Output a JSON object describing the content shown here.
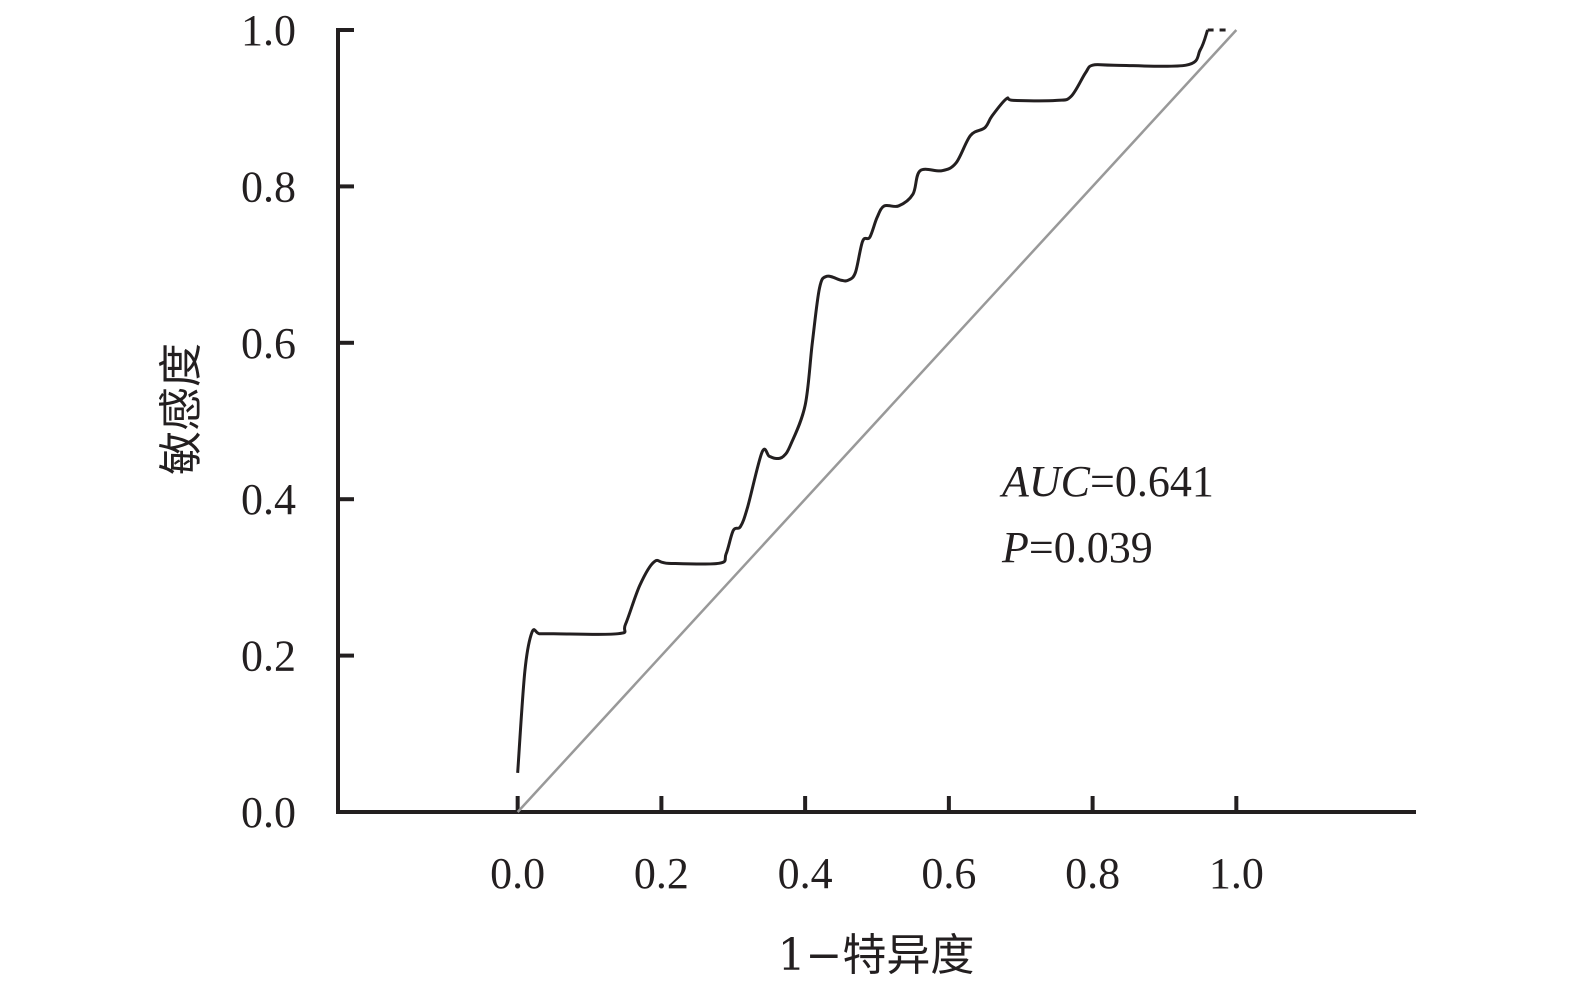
{
  "chart_data": {
    "type": "line",
    "xlabel": "1−特异度",
    "ylabel": "敏感度",
    "xlim": [
      -0.25,
      1.25
    ],
    "ylim": [
      0,
      1
    ],
    "x_ticks": [
      "0.0",
      "0.2",
      "0.4",
      "0.6",
      "0.8",
      "1.0"
    ],
    "y_ticks": [
      "0.0",
      "0.2",
      "0.4",
      "0.6",
      "0.8",
      "1.0"
    ],
    "grid": false,
    "annotation": {
      "auc_name": "AUC",
      "auc_value": "=0.641",
      "p_name": "P",
      "p_value": "=0.039"
    },
    "series": [
      {
        "role": "roc-curve",
        "color": "#231f20",
        "points": [
          [
            0.0,
            0.05
          ],
          [
            0.01,
            0.18
          ],
          [
            0.02,
            0.23
          ],
          [
            0.03,
            0.228
          ],
          [
            0.05,
            0.228
          ],
          [
            0.14,
            0.228
          ],
          [
            0.15,
            0.24
          ],
          [
            0.17,
            0.29
          ],
          [
            0.19,
            0.32
          ],
          [
            0.21,
            0.318
          ],
          [
            0.28,
            0.318
          ],
          [
            0.29,
            0.33
          ],
          [
            0.3,
            0.36
          ],
          [
            0.31,
            0.365
          ],
          [
            0.32,
            0.39
          ],
          [
            0.34,
            0.46
          ],
          [
            0.35,
            0.455
          ],
          [
            0.36,
            0.452
          ],
          [
            0.37,
            0.455
          ],
          [
            0.38,
            0.47
          ],
          [
            0.4,
            0.52
          ],
          [
            0.41,
            0.6
          ],
          [
            0.42,
            0.67
          ],
          [
            0.43,
            0.685
          ],
          [
            0.45,
            0.68
          ],
          [
            0.46,
            0.68
          ],
          [
            0.47,
            0.69
          ],
          [
            0.48,
            0.73
          ],
          [
            0.49,
            0.735
          ],
          [
            0.5,
            0.76
          ],
          [
            0.51,
            0.775
          ],
          [
            0.53,
            0.775
          ],
          [
            0.55,
            0.79
          ],
          [
            0.56,
            0.82
          ],
          [
            0.59,
            0.82
          ],
          [
            0.61,
            0.83
          ],
          [
            0.63,
            0.865
          ],
          [
            0.65,
            0.875
          ],
          [
            0.66,
            0.89
          ],
          [
            0.68,
            0.912
          ],
          [
            0.69,
            0.91
          ],
          [
            0.75,
            0.91
          ],
          [
            0.77,
            0.915
          ],
          [
            0.79,
            0.945
          ],
          [
            0.8,
            0.955
          ],
          [
            0.83,
            0.955
          ],
          [
            0.93,
            0.955
          ],
          [
            0.95,
            0.975
          ],
          [
            0.96,
            1.0
          ]
        ]
      },
      {
        "role": "roc-curve-dashed-end",
        "color": "#231f20",
        "points": [
          [
            0.96,
            1.0
          ],
          [
            0.99,
            1.0
          ]
        ]
      },
      {
        "role": "reference-diagonal",
        "color": "#999999",
        "points": [
          [
            0.0,
            0.0
          ],
          [
            1.0,
            1.0
          ]
        ]
      }
    ]
  }
}
